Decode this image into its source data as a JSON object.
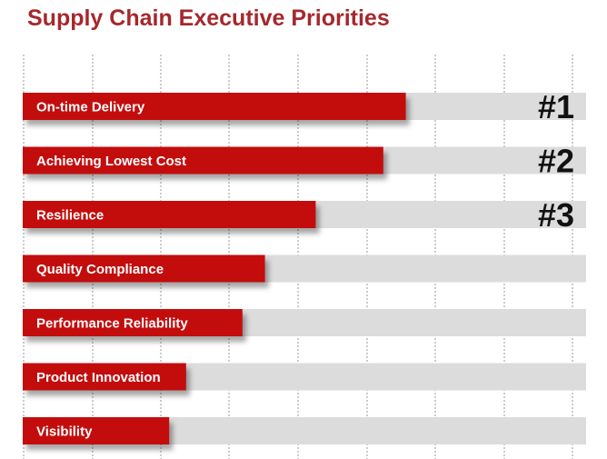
{
  "chart_data": {
    "type": "bar",
    "orientation": "horizontal",
    "title": "Supply Chain Executive Priorities",
    "categories": [
      "On-time Delivery",
      "Achieving Lowest Cost",
      "Resilience",
      "Quality Compliance",
      "Performance Reliability",
      "Product Innovation",
      "Visibility"
    ],
    "values": [
      68,
      64,
      52,
      43,
      39,
      29,
      26
    ],
    "ylim": [
      0,
      100
    ],
    "ranks": [
      "#1",
      "#2",
      "#3",
      "",
      "",
      "",
      ""
    ],
    "grid": true,
    "colors": {
      "bar": "#c3080f",
      "track": "#dcdcdc",
      "title": "#a5282d",
      "grid": "#9a9a9a",
      "label": "#ffffff",
      "rank": "#111111"
    }
  }
}
